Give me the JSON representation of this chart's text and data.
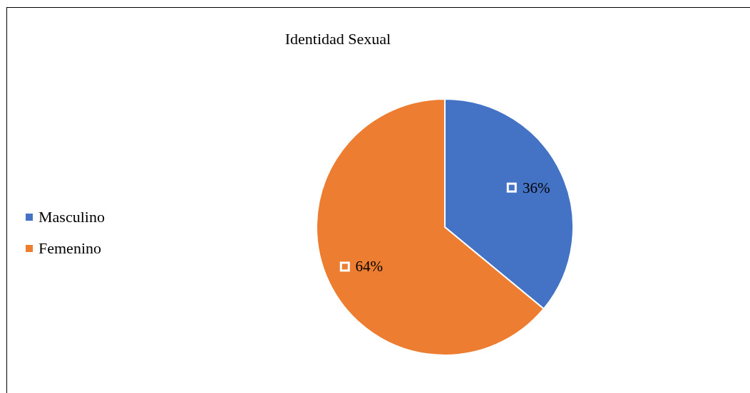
{
  "chart_data": {
    "type": "pie",
    "title": "Identidad Sexual",
    "categories": [
      "Masculino",
      "Femenino"
    ],
    "values": [
      36,
      64
    ],
    "colors": [
      "#4472c4",
      "#ed7d31"
    ],
    "value_labels": [
      "36%",
      "64%"
    ],
    "legend": "left"
  }
}
